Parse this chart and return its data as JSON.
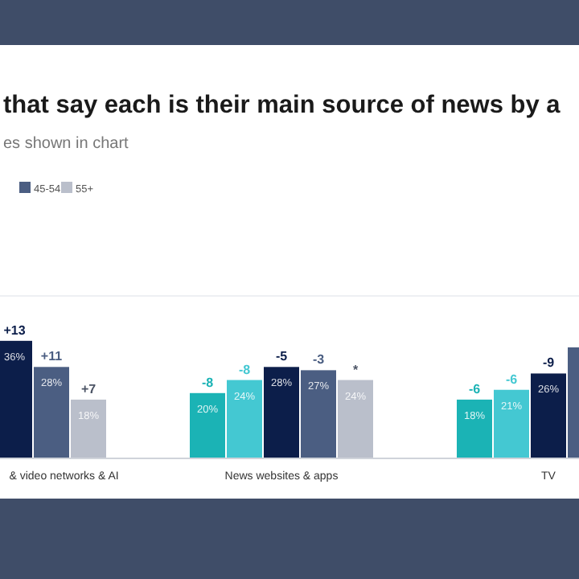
{
  "chart_data": {
    "type": "bar",
    "title": "that say each is their main source of news by a",
    "subtitle": "es shown in chart",
    "categories": [
      "& video networks & AI",
      "News websites & apps",
      "TV"
    ],
    "series": [
      {
        "color": "#1bb3b5",
        "values": [
          null,
          20,
          18
        ],
        "value_labels": [
          null,
          "20%",
          "18%"
        ]
      },
      {
        "color": "#44c8d2",
        "values": [
          null,
          24,
          21
        ],
        "value_labels": [
          null,
          "24%",
          "21%"
        ]
      },
      {
        "color": "#0c1e4a",
        "values": [
          36,
          28,
          26
        ],
        "value_labels": [
          "36%",
          "28%",
          "26%"
        ]
      },
      {
        "name": "45-54",
        "color": "#4b5e82",
        "values": [
          28,
          27,
          34
        ],
        "value_labels": [
          "28%",
          "27%",
          null
        ]
      },
      {
        "name": "55+",
        "color": "#babfcb",
        "values": [
          18,
          24,
          null
        ],
        "value_labels": [
          "18%",
          "24%",
          null
        ]
      }
    ],
    "annotations": [
      "+13",
      "+11",
      "+7",
      "-8",
      "-8",
      "-5",
      "-3",
      "*",
      "-6",
      "-6",
      "-9"
    ],
    "legend": "top left"
  }
}
